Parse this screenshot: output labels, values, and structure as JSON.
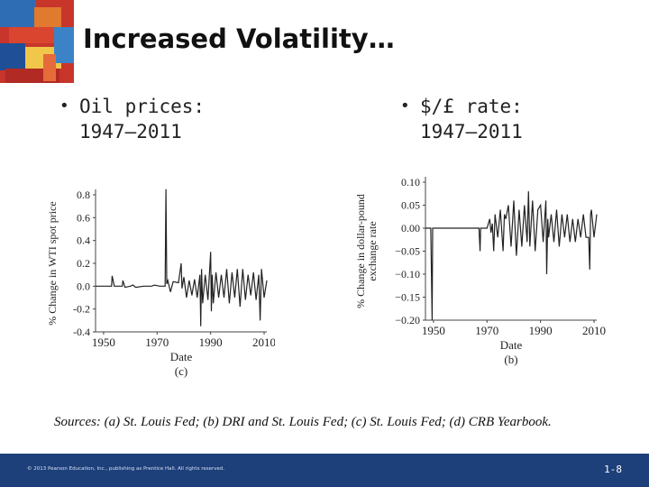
{
  "slide": {
    "title": "Increased Volatility…",
    "bullets": [
      {
        "line1": "Oil prices:",
        "line2": "1947–2011"
      },
      {
        "line1": "$/£ rate:",
        "line2": "1947–2011"
      }
    ],
    "sources": "Sources: (a) St. Louis Fed; (b) DRI and St. Louis Fed; (c) St. Louis Fed; (d) CRB Yearbook.",
    "copyright": "© 2013 Pearson Education, Inc., publishing as Prentice Hall. All rights reserved.",
    "page_number": "1-8",
    "colors": {
      "footer": "#1d3f7a",
      "line": "#222222"
    }
  },
  "chart_data": [
    {
      "type": "line",
      "title": "",
      "xlabel": "Date",
      "ylabel": "% Change in WTI spot price",
      "panel_label": "(c)",
      "xlim": [
        1947,
        2011
      ],
      "ylim": [
        -0.4,
        0.8
      ],
      "xticks": [
        1950,
        1970,
        1990,
        2010
      ],
      "xtick_labels": [
        "1950",
        "1970",
        "1990",
        "2010"
      ],
      "yticks": [
        0.8,
        0.6,
        0.4,
        0.2,
        0.0,
        -0.2,
        -0.4
      ],
      "ytick_labels": [
        "0.8",
        "0.6",
        "0.4",
        "0.2",
        "0.0",
        "-0.2",
        "-0.4"
      ],
      "series": [
        {
          "x": [
            1947,
            1953,
            1953.2,
            1954,
            1957,
            1957.2,
            1958,
            1960,
            1961,
            1962,
            1965,
            1966,
            1968,
            1969,
            1971,
            1973,
            1973.3,
            1973.6,
            1974,
            1975,
            1976,
            1978,
            1979,
            1979.3,
            1980,
            1981,
            1982,
            1983,
            1984,
            1985,
            1986,
            1986.3,
            1986.6,
            1987,
            1988,
            1989,
            1990,
            1990.3,
            1990.6,
            1991,
            1992,
            1993,
            1994,
            1995,
            1996,
            1997,
            1998,
            1999,
            2000,
            2001,
            2002,
            2003,
            2004,
            2005,
            2006,
            2007,
            2008,
            2008.5,
            2009,
            2010,
            2011
          ],
          "y": [
            0.0,
            0.0,
            0.09,
            0.0,
            0.0,
            0.05,
            -0.01,
            0.0,
            0.01,
            -0.01,
            0.0,
            0.0,
            0.0,
            0.01,
            0.0,
            0.0,
            0.85,
            0.02,
            0.05,
            -0.05,
            0.04,
            0.03,
            0.2,
            -0.02,
            0.08,
            -0.1,
            0.05,
            -0.08,
            0.06,
            -0.1,
            0.1,
            -0.35,
            0.15,
            -0.15,
            0.1,
            -0.12,
            0.3,
            -0.22,
            0.1,
            -0.15,
            0.12,
            -0.1,
            0.1,
            -0.1,
            0.15,
            -0.15,
            0.12,
            -0.1,
            0.15,
            -0.18,
            0.15,
            -0.12,
            0.1,
            -0.08,
            0.12,
            -0.12,
            0.1,
            -0.3,
            0.15,
            -0.1,
            0.05
          ]
        }
      ]
    },
    {
      "type": "line",
      "title": "",
      "xlabel": "Date",
      "ylabel": "% Change in dollar-pound exchange rate",
      "panel_label": "(b)",
      "xlim": [
        1947,
        2011
      ],
      "ylim": [
        -0.2,
        0.1
      ],
      "xticks": [
        1950,
        1970,
        1990,
        2010
      ],
      "xtick_labels": [
        "1950",
        "1970",
        "1990",
        "2010"
      ],
      "yticks": [
        0.1,
        0.05,
        0.0,
        -0.05,
        -0.1,
        -0.15,
        -0.2
      ],
      "ytick_labels": [
        "0.10",
        "0.05",
        "0.00",
        "−0.05",
        "−0.10",
        "−0.15",
        "−0.20"
      ],
      "series": [
        {
          "x": [
            1947,
            1949,
            1949.5,
            1949.7,
            1950,
            1955,
            1960,
            1966,
            1967,
            1967.4,
            1967.6,
            1968,
            1970,
            1971,
            1971.5,
            1972,
            1972.5,
            1973,
            1974,
            1975,
            1976,
            1976.5,
            1977,
            1978,
            1979,
            1980,
            1981,
            1982,
            1983,
            1984,
            1985,
            1985.5,
            1986,
            1987,
            1988,
            1989,
            1990,
            1991,
            1992,
            1992.3,
            1992.7,
            1993,
            1994,
            1995,
            1996,
            1997,
            1998,
            1999,
            2000,
            2001,
            2002,
            2003,
            2004,
            2005,
            2006,
            2007,
            2008,
            2008.4,
            2008.7,
            2009,
            2010,
            2011
          ],
          "y": [
            0.0,
            0.0,
            -0.2,
            0.0,
            0.0,
            0.0,
            0.0,
            0.0,
            0.0,
            -0.05,
            0.0,
            0.0,
            0.0,
            0.02,
            -0.01,
            0.01,
            -0.05,
            0.03,
            -0.02,
            0.04,
            -0.05,
            0.03,
            0.02,
            0.05,
            -0.04,
            0.06,
            -0.06,
            0.04,
            -0.04,
            0.05,
            -0.03,
            0.08,
            -0.04,
            0.06,
            -0.05,
            0.04,
            0.05,
            -0.03,
            0.06,
            -0.1,
            0.02,
            -0.02,
            0.03,
            -0.03,
            0.04,
            -0.04,
            0.03,
            -0.02,
            0.03,
            -0.03,
            0.02,
            -0.03,
            0.02,
            -0.02,
            0.03,
            -0.02,
            -0.02,
            -0.09,
            0.03,
            0.04,
            -0.02,
            0.03
          ]
        }
      ]
    }
  ]
}
